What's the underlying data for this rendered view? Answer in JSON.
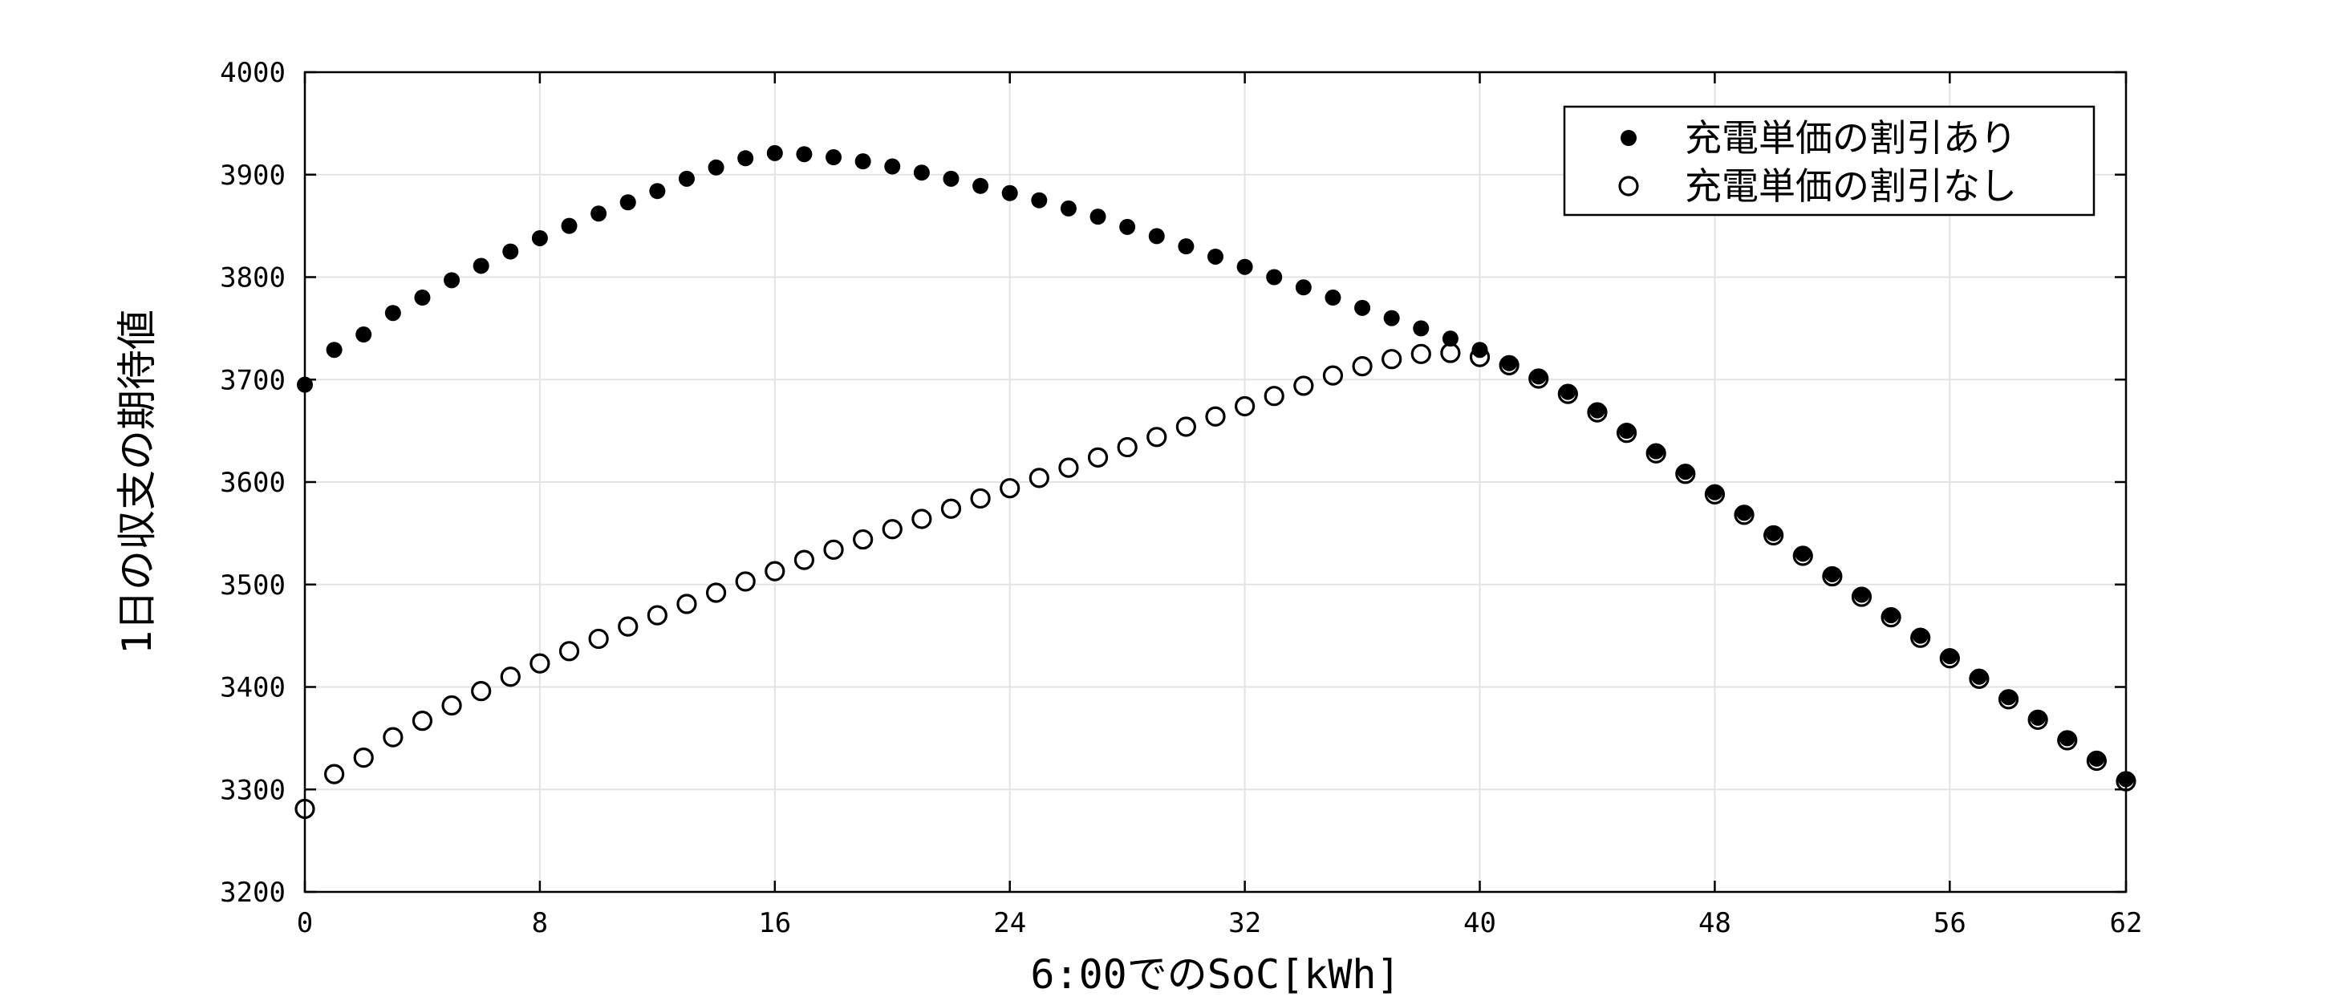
{
  "chart_data": {
    "type": "scatter",
    "title": "",
    "xlabel": "6:00でのSoC[kWh]",
    "ylabel": "1日の収支の期待値",
    "xlim": [
      0,
      62
    ],
    "ylim": [
      3200,
      4000
    ],
    "x_ticks": [
      "0",
      "8",
      "16",
      "24",
      "32",
      "40",
      "48",
      "56",
      "62"
    ],
    "y_ticks": [
      "3200",
      "3300",
      "3400",
      "3500",
      "3600",
      "3700",
      "3800",
      "3900",
      "4000"
    ],
    "grid": true,
    "legend_position": "top-right",
    "x": [
      0,
      1,
      2,
      3,
      4,
      5,
      6,
      7,
      8,
      9,
      10,
      11,
      12,
      13,
      14,
      15,
      16,
      17,
      18,
      19,
      20,
      21,
      22,
      23,
      24,
      25,
      26,
      27,
      28,
      29,
      30,
      31,
      32,
      33,
      34,
      35,
      36,
      37,
      38,
      39,
      40,
      41,
      42,
      43,
      44,
      45,
      46,
      47,
      48,
      49,
      50,
      51,
      52,
      53,
      54,
      55,
      56,
      57,
      58,
      59,
      60,
      61,
      62
    ],
    "series": [
      {
        "name": "充電単価の割引あり",
        "marker": "filled-circle",
        "color": "#000000",
        "values": [
          3695,
          3729,
          3744,
          3765,
          3780,
          3797,
          3811,
          3825,
          3838,
          3850,
          3862,
          3873,
          3884,
          3896,
          3907,
          3916,
          3921,
          3920,
          3917,
          3913,
          3908,
          3902,
          3896,
          3889,
          3882,
          3875,
          3867,
          3859,
          3849,
          3840,
          3830,
          3820,
          3810,
          3800,
          3790,
          3780,
          3770,
          3760,
          3750,
          3740,
          3729,
          3716,
          3703,
          3688,
          3670,
          3650,
          3630,
          3610,
          3590,
          3570,
          3550,
          3530,
          3510,
          3490,
          3470,
          3450,
          3430,
          3410,
          3390,
          3370,
          3350,
          3330,
          3310
        ]
      },
      {
        "name": "充電単価の割引なし",
        "marker": "open-circle",
        "color": "#000000",
        "values": [
          3281,
          3315,
          3331,
          3351,
          3367,
          3382,
          3396,
          3410,
          3423,
          3435,
          3447,
          3459,
          3470,
          3481,
          3492,
          3503,
          3513,
          3524,
          3534,
          3544,
          3554,
          3564,
          3574,
          3584,
          3594,
          3604,
          3614,
          3624,
          3634,
          3644,
          3654,
          3664,
          3674,
          3684,
          3694,
          3704,
          3713,
          3720,
          3725,
          3726,
          3722,
          3714,
          3701,
          3686,
          3668,
          3648,
          3628,
          3608,
          3588,
          3568,
          3548,
          3528,
          3508,
          3488,
          3468,
          3448,
          3428,
          3408,
          3388,
          3368,
          3348,
          3328,
          3308
        ]
      }
    ]
  }
}
